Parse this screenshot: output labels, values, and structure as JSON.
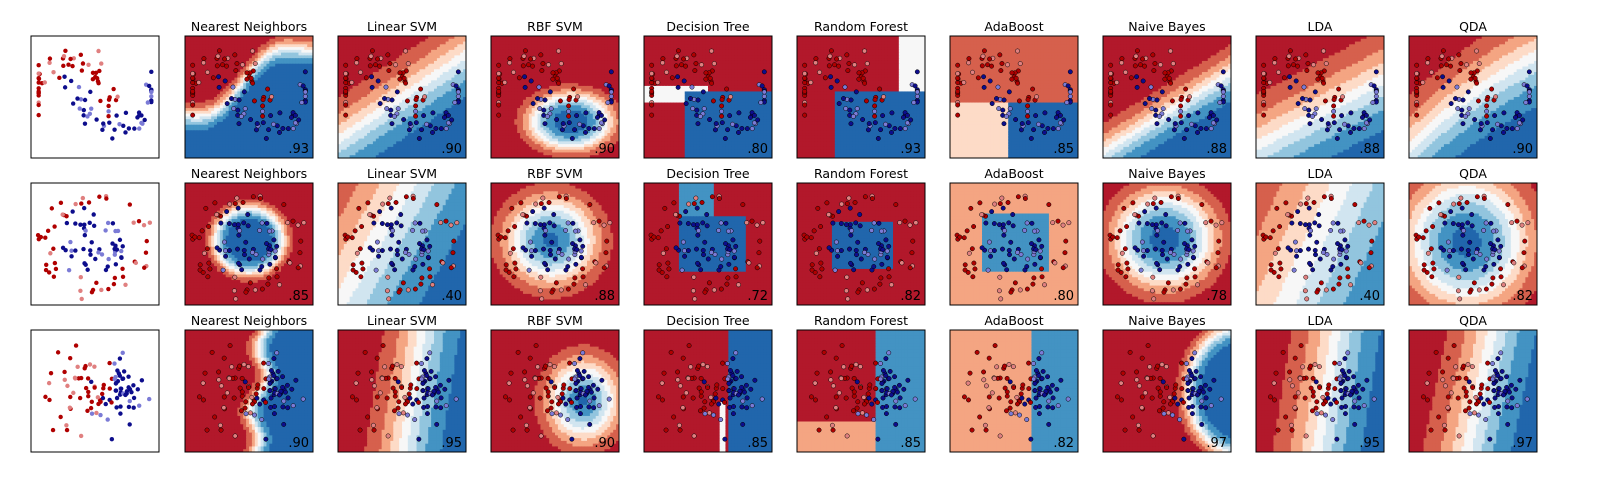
{
  "colors": {
    "red_dark": "#b2182b",
    "red": "#d6604d",
    "red_light": "#f4a582",
    "red_pale": "#fddbc7",
    "neutral": "#f7f7f7",
    "blue_pale": "#d1e5f0",
    "blue_light": "#92c5de",
    "blue": "#4393c3",
    "blue_dark": "#2166ac",
    "point_red": "#b00000",
    "point_blue": "#0d0d8c",
    "point_red_test": "#e08080",
    "point_blue_test": "#7b7bd6",
    "frame": "#000000"
  },
  "chart_data": {
    "type": "scatter",
    "layout": "grid of 3 rows by 10 columns of classifier decision boundary panels",
    "columns": [
      "",
      "Nearest Neighbors",
      "Linear SVM",
      "RBF SVM",
      "Decision Tree",
      "Random Forest",
      "AdaBoost",
      "Naive Bayes",
      "LDA",
      "QDA"
    ],
    "rows": [
      {
        "dataset": "moons",
        "panels": [
          {
            "title": "",
            "score": ""
          },
          {
            "title": "Nearest Neighbors",
            "score": ".93"
          },
          {
            "title": "Linear SVM",
            "score": ".90"
          },
          {
            "title": "RBF SVM",
            "score": ".90"
          },
          {
            "title": "Decision Tree",
            "score": ".80"
          },
          {
            "title": "Random Forest",
            "score": ".93"
          },
          {
            "title": "AdaBoost",
            "score": ".85"
          },
          {
            "title": "Naive Bayes",
            "score": ".88"
          },
          {
            "title": "LDA",
            "score": ".88"
          },
          {
            "title": "QDA",
            "score": ".90"
          }
        ]
      },
      {
        "dataset": "circles",
        "panels": [
          {
            "title": "",
            "score": ""
          },
          {
            "title": "Nearest Neighbors",
            "score": ".85"
          },
          {
            "title": "Linear SVM",
            "score": ".40"
          },
          {
            "title": "RBF SVM",
            "score": ".88"
          },
          {
            "title": "Decision Tree",
            "score": ".72"
          },
          {
            "title": "Random Forest",
            "score": ".82"
          },
          {
            "title": "AdaBoost",
            "score": ".80"
          },
          {
            "title": "Naive Bayes",
            "score": ".78"
          },
          {
            "title": "LDA",
            "score": ".40"
          },
          {
            "title": "QDA",
            "score": ".82"
          }
        ]
      },
      {
        "dataset": "linearly_separable",
        "panels": [
          {
            "title": "",
            "score": ""
          },
          {
            "title": "Nearest Neighbors",
            "score": ".90"
          },
          {
            "title": "Linear SVM",
            "score": ".95"
          },
          {
            "title": "RBF SVM",
            "score": ".90"
          },
          {
            "title": "Decision Tree",
            "score": ".85"
          },
          {
            "title": "Random Forest",
            "score": ".85"
          },
          {
            "title": "AdaBoost",
            "score": ".82"
          },
          {
            "title": "Naive Bayes",
            "score": ".97"
          },
          {
            "title": "LDA",
            "score": ".95"
          },
          {
            "title": "QDA",
            "score": ".97"
          }
        ]
      }
    ],
    "legend": "none",
    "grid": false,
    "ticks": "none"
  }
}
